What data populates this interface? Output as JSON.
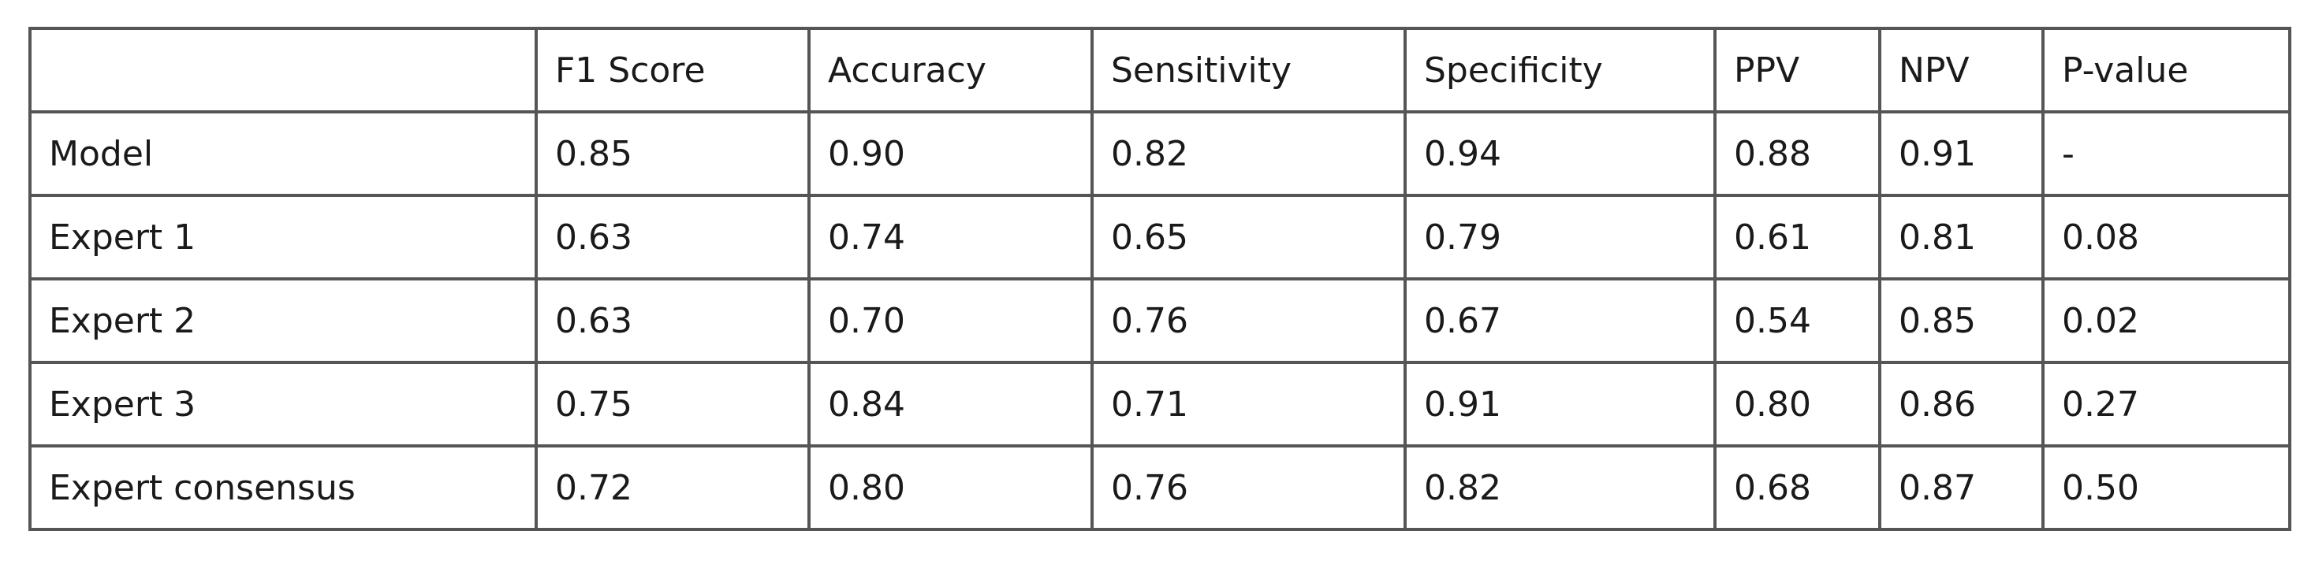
{
  "table": {
    "columns": [
      "F1 Score",
      "Accuracy",
      "Sensitivity",
      "Specificity",
      "PPV",
      "NPV",
      "P-value"
    ],
    "rows": [
      [
        "Model",
        "0.85",
        "0.90",
        "0.82",
        "0.94",
        "0.88",
        "0.91",
        "-"
      ],
      [
        "Expert 1",
        "0.63",
        "0.74",
        "0.65",
        "0.79",
        "0.61",
        "0.81",
        "0.08"
      ],
      [
        "Expert 2",
        "0.63",
        "0.70",
        "0.76",
        "0.67",
        "0.54",
        "0.85",
        "0.02"
      ],
      [
        "Expert 3",
        "0.75",
        "0.84",
        "0.71",
        "0.91",
        "0.80",
        "0.86",
        "0.27"
      ],
      [
        "Expert consensus",
        "0.72",
        "0.80",
        "0.76",
        "0.82",
        "0.68",
        "0.87",
        "0.50"
      ]
    ]
  }
}
